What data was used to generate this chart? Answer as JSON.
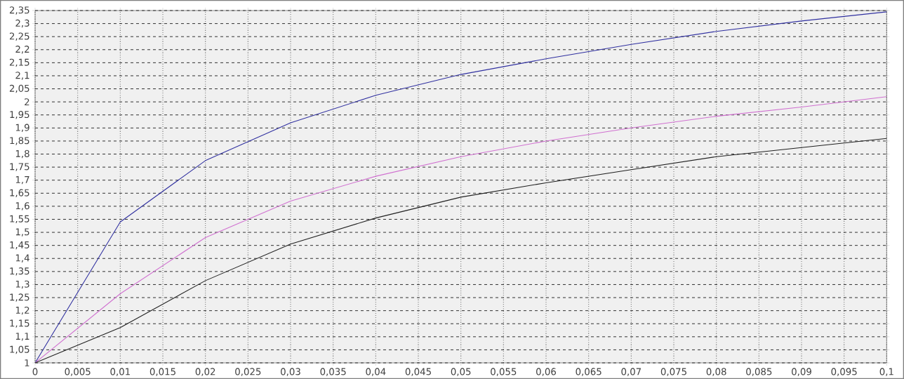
{
  "chart_data": {
    "type": "line",
    "x": [
      0,
      0.01,
      0.02,
      0.03,
      0.04,
      0.05,
      0.06,
      0.07,
      0.08,
      0.09,
      0.1
    ],
    "series": [
      {
        "color": "#3030a0",
        "values": [
          1,
          1.54,
          1.775,
          1.92,
          2.025,
          2.105,
          2.165,
          2.22,
          2.27,
          2.31,
          2.345
        ]
      },
      {
        "color": "#d070d0",
        "values": [
          1,
          1.265,
          1.48,
          1.62,
          1.715,
          1.79,
          1.85,
          1.9,
          1.945,
          1.98,
          2.02
        ]
      },
      {
        "color": "#202020",
        "values": [
          1,
          1.135,
          1.315,
          1.455,
          1.555,
          1.635,
          1.69,
          1.74,
          1.79,
          1.825,
          1.86
        ]
      }
    ],
    "xlim": [
      0,
      0.1
    ],
    "ylim": [
      1,
      2.35
    ],
    "xticks": [
      {
        "value": 0,
        "label": "0"
      },
      {
        "value": 0.005,
        "label": "0,005"
      },
      {
        "value": 0.01,
        "label": "0,01"
      },
      {
        "value": 0.015,
        "label": "0,015"
      },
      {
        "value": 0.02,
        "label": "0,02"
      },
      {
        "value": 0.025,
        "label": "0,025"
      },
      {
        "value": 0.03,
        "label": "0,03"
      },
      {
        "value": 0.035,
        "label": "0,035"
      },
      {
        "value": 0.04,
        "label": "0,04"
      },
      {
        "value": 0.045,
        "label": "0,045"
      },
      {
        "value": 0.05,
        "label": "0,05"
      },
      {
        "value": 0.055,
        "label": "0,055"
      },
      {
        "value": 0.06,
        "label": "0,06"
      },
      {
        "value": 0.065,
        "label": "0,065"
      },
      {
        "value": 0.07,
        "label": "0,07"
      },
      {
        "value": 0.075,
        "label": "0,075"
      },
      {
        "value": 0.08,
        "label": "0,08"
      },
      {
        "value": 0.085,
        "label": "0,085"
      },
      {
        "value": 0.09,
        "label": "0,09"
      },
      {
        "value": 0.095,
        "label": "0,095"
      },
      {
        "value": 0.1,
        "label": "0,1"
      }
    ],
    "yticks": [
      {
        "value": 1,
        "label": "1"
      },
      {
        "value": 1.05,
        "label": "1,05"
      },
      {
        "value": 1.1,
        "label": "1,1"
      },
      {
        "value": 1.15,
        "label": "1,15"
      },
      {
        "value": 1.2,
        "label": "1,2"
      },
      {
        "value": 1.25,
        "label": "1,25"
      },
      {
        "value": 1.3,
        "label": "1,3"
      },
      {
        "value": 1.35,
        "label": "1,35"
      },
      {
        "value": 1.4,
        "label": "1,4"
      },
      {
        "value": 1.45,
        "label": "1,45"
      },
      {
        "value": 1.5,
        "label": "1,5"
      },
      {
        "value": 1.55,
        "label": "1,55"
      },
      {
        "value": 1.6,
        "label": "1,6"
      },
      {
        "value": 1.65,
        "label": "1,65"
      },
      {
        "value": 1.7,
        "label": "1,7"
      },
      {
        "value": 1.75,
        "label": "1,75"
      },
      {
        "value": 1.8,
        "label": "1,8"
      },
      {
        "value": 1.85,
        "label": "1,85"
      },
      {
        "value": 1.9,
        "label": "1,9"
      },
      {
        "value": 1.95,
        "label": "1,95"
      },
      {
        "value": 2,
        "label": "2"
      },
      {
        "value": 2.05,
        "label": "2,05"
      },
      {
        "value": 2.1,
        "label": "2,1"
      },
      {
        "value": 2.15,
        "label": "2,15"
      },
      {
        "value": 2.2,
        "label": "2,2"
      },
      {
        "value": 2.25,
        "label": "2,25"
      },
      {
        "value": 2.3,
        "label": "2,3"
      },
      {
        "value": 2.35,
        "label": "2,35"
      }
    ],
    "grid": true
  }
}
